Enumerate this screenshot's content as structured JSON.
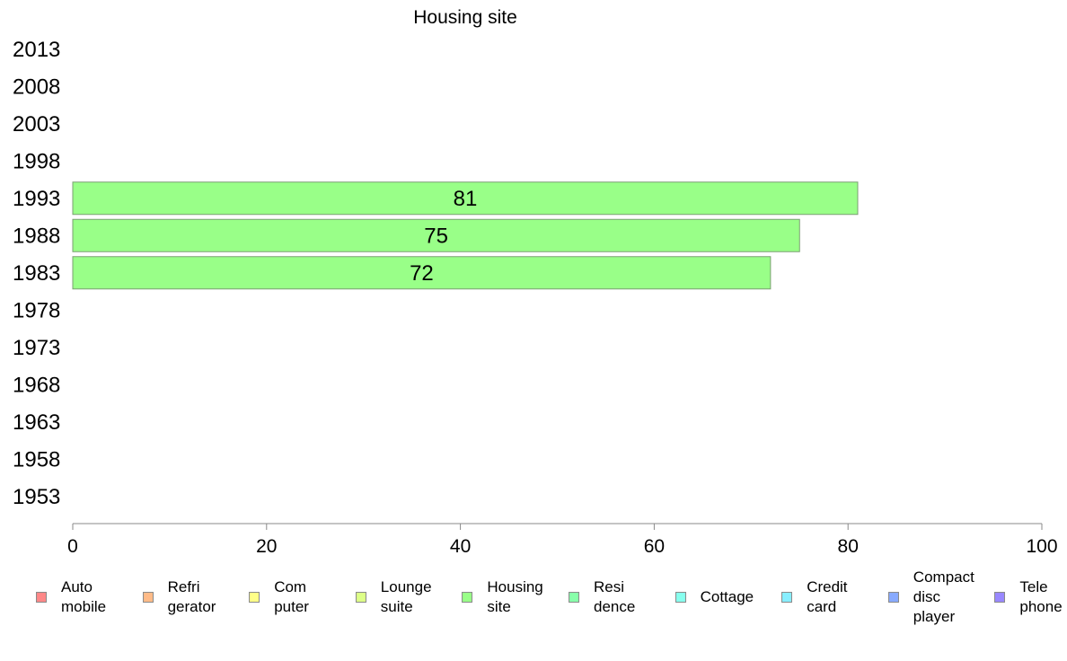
{
  "chart_data": {
    "type": "bar",
    "orientation": "horizontal",
    "title": "Housing site",
    "categories": [
      "2013",
      "2008",
      "2003",
      "1998",
      "1993",
      "1988",
      "1983",
      "1978",
      "1973",
      "1968",
      "1963",
      "1958",
      "1953"
    ],
    "series": [
      {
        "name": "Housing site",
        "color": "#99ff88",
        "values": [
          null,
          null,
          null,
          null,
          81,
          75,
          72,
          null,
          null,
          null,
          null,
          null,
          null
        ]
      }
    ],
    "xlim": [
      0,
      100
    ],
    "xticks": [
      0,
      20,
      40,
      60,
      80,
      100
    ],
    "grid": false
  },
  "legend": {
    "items": [
      {
        "label": "Auto\nmobile",
        "color": "#ff8888"
      },
      {
        "label": "Refri\ngerator",
        "color": "#ffbb88"
      },
      {
        "label": "Com\nputer",
        "color": "#ffff88"
      },
      {
        "label": "Lounge\nsuite",
        "color": "#ddff88"
      },
      {
        "label": "Housing\nsite",
        "color": "#99ff88"
      },
      {
        "label": "Resi\ndence",
        "color": "#88ffaa"
      },
      {
        "label": "Cottage",
        "color": "#88ffee"
      },
      {
        "label": "Credit\ncard",
        "color": "#88eeff"
      },
      {
        "label": "Compact\ndisc\nplayer",
        "color": "#88aaff"
      },
      {
        "label": "Tele\nphone",
        "color": "#9988ff"
      }
    ]
  }
}
